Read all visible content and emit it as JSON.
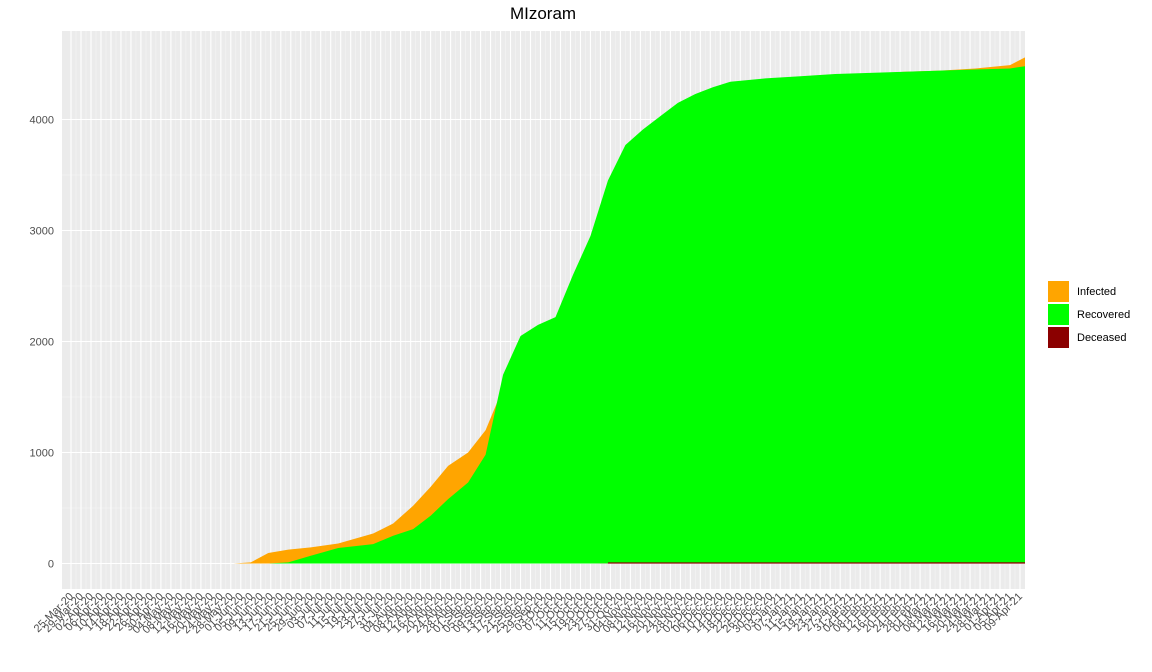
{
  "chart_data": {
    "type": "area",
    "title": "MIzoram",
    "xlabel": "",
    "ylabel": "",
    "ylim": [
      0,
      4600
    ],
    "y_ticks": [
      0,
      1000,
      2000,
      3000,
      4000
    ],
    "grid": true,
    "legend_position": "right",
    "x_tick_labels": [
      "25-Mar-20",
      "29-Mar-20",
      "02-Apr-20",
      "06-Apr-20",
      "10-Apr-20",
      "14-Apr-20",
      "18-Apr-20",
      "22-Apr-20",
      "26-Apr-20",
      "30-Apr-20",
      "04-May-20",
      "08-May-20",
      "12-May-20",
      "16-May-20",
      "20-May-20",
      "24-May-20",
      "28-May-20",
      "01-Jun-20",
      "05-Jun-20",
      "09-Jun-20",
      "13-Jun-20",
      "17-Jun-20",
      "21-Jun-20",
      "25-Jun-20",
      "29-Jun-20",
      "03-Jul-20",
      "07-Jul-20",
      "11-Jul-20",
      "15-Jul-20",
      "19-Jul-20",
      "23-Jul-20",
      "27-Jul-20",
      "31-Jul-20",
      "04-Aug-20",
      "08-Aug-20",
      "12-Aug-20",
      "16-Aug-20",
      "20-Aug-20",
      "24-Aug-20",
      "28-Aug-20",
      "01-Sep-20",
      "05-Sep-20",
      "09-Sep-20",
      "13-Sep-20",
      "17-Sep-20",
      "21-Sep-20",
      "25-Sep-20",
      "29-Sep-20",
      "03-Oct-20",
      "07-Oct-20",
      "11-Oct-20",
      "15-Oct-20",
      "19-Oct-20",
      "23-Oct-20",
      "27-Oct-20",
      "31-Oct-20",
      "04-Nov-20",
      "08-Nov-20",
      "12-Nov-20",
      "16-Nov-20",
      "20-Nov-20",
      "24-Nov-20",
      "28-Nov-20",
      "02-Dec-20",
      "06-Dec-20",
      "10-Dec-20",
      "14-Dec-20",
      "18-Dec-20",
      "22-Dec-20",
      "26-Dec-20",
      "30-Dec-20",
      "03-Jan-21",
      "07-Jan-21",
      "11-Jan-21",
      "15-Jan-21",
      "19-Jan-21",
      "23-Jan-21",
      "27-Jan-21",
      "31-Jan-21",
      "04-Feb-21",
      "08-Feb-21",
      "12-Feb-21",
      "16-Feb-21",
      "20-Feb-21",
      "24-Feb-21",
      "28-Feb-21",
      "04-Mar-21",
      "08-Mar-21",
      "12-Mar-21",
      "16-Mar-21",
      "20-Mar-21",
      "24-Mar-21",
      "28-Mar-21",
      "01-Apr-21",
      "05-Apr-21",
      "09-Apr-21"
    ],
    "x_start_date": "2020-03-25",
    "x_end_date": "2021-04-11",
    "x": [
      "2020-03-25",
      "2020-05-29",
      "2020-06-05",
      "2020-06-12",
      "2020-06-20",
      "2020-06-29",
      "2020-07-10",
      "2020-07-24",
      "2020-08-01",
      "2020-08-09",
      "2020-08-16",
      "2020-08-23",
      "2020-08-31",
      "2020-09-07",
      "2020-09-14",
      "2020-09-21",
      "2020-09-28",
      "2020-10-05",
      "2020-10-12",
      "2020-10-19",
      "2020-10-26",
      "2020-11-02",
      "2020-11-09",
      "2020-11-16",
      "2020-11-23",
      "2020-11-30",
      "2020-12-07",
      "2020-12-14",
      "2020-12-28",
      "2021-01-11",
      "2021-01-25",
      "2021-02-08",
      "2021-02-22",
      "2021-03-08",
      "2021-03-22",
      "2021-04-05",
      "2021-04-11"
    ],
    "series": [
      {
        "name": "Infected",
        "color": "#FFA500",
        "values": [
          0,
          0,
          10,
          95,
          125,
          145,
          180,
          270,
          360,
          520,
          690,
          880,
          1000,
          1200,
          1580,
          1900,
          2120,
          2210,
          2350,
          2720,
          3050,
          3430,
          3760,
          3920,
          4070,
          4180,
          4240,
          4290,
          4340,
          4370,
          4390,
          4410,
          4430,
          4440,
          4460,
          4490,
          4560
        ]
      },
      {
        "name": "Recovered",
        "color": "#00FF00",
        "values": [
          0,
          0,
          0,
          0,
          10,
          70,
          140,
          175,
          250,
          310,
          430,
          580,
          730,
          980,
          1700,
          2050,
          2150,
          2220,
          2600,
          2950,
          3450,
          3770,
          3910,
          4030,
          4150,
          4230,
          4290,
          4340,
          4370,
          4390,
          4410,
          4420,
          4430,
          4440,
          4450,
          4460,
          4480
        ]
      },
      {
        "name": "Deceased",
        "color": "#8B0000",
        "values": [
          0,
          0,
          0,
          0,
          0,
          0,
          0,
          0,
          0,
          0,
          0,
          0,
          0,
          0,
          0,
          0,
          0,
          0,
          0,
          0,
          1,
          1,
          4,
          6,
          8,
          8,
          8,
          8,
          8,
          9,
          9,
          9,
          9,
          10,
          10,
          10,
          10
        ]
      }
    ]
  }
}
